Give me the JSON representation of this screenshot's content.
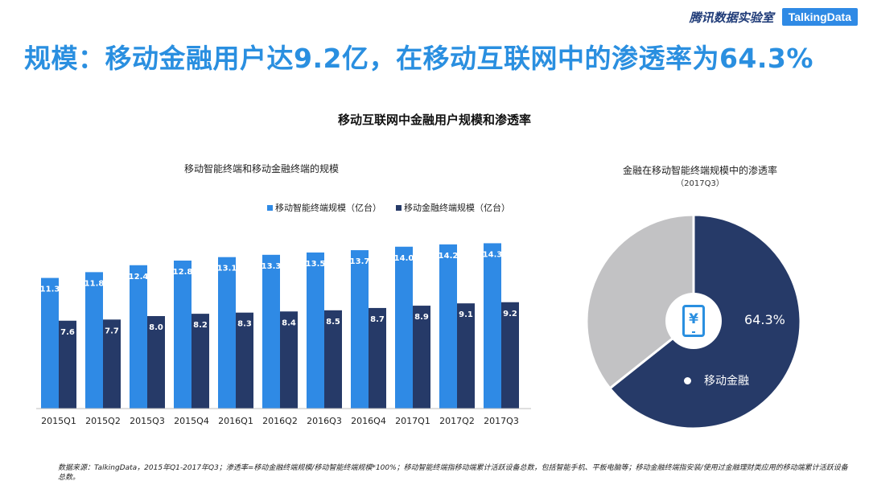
{
  "brand": {
    "lab": "腾讯数据实验室",
    "partner": "TalkingData"
  },
  "headline": "规模：移动金融用户达9.2亿，在移动互联网中的渗透率为64.3%",
  "colors": {
    "smart": "#2f8ae5",
    "finance": "#263a68",
    "pie_other": "#c2c2c4",
    "title_blue": "#2a8fe0"
  },
  "chart_data": [
    {
      "type": "bar",
      "title": "移动互联网中金融用户规模和渗透率",
      "subtitle": "移动智能终端和移动金融终端的规模",
      "categories": [
        "2015Q1",
        "2015Q2",
        "2015Q3",
        "2015Q4",
        "2016Q1",
        "2016Q2",
        "2016Q3",
        "2016Q4",
        "2017Q1",
        "2017Q2",
        "2017Q3"
      ],
      "series": [
        {
          "name": "移动智能终端规模（亿台）",
          "values": [
            11.3,
            11.8,
            12.4,
            12.8,
            13.1,
            13.3,
            13.5,
            13.7,
            14.0,
            14.2,
            14.3
          ]
        },
        {
          "name": "移动金融终端规模（亿台）",
          "values": [
            7.6,
            7.7,
            8.0,
            8.2,
            8.3,
            8.4,
            8.5,
            8.7,
            8.9,
            9.1,
            9.2
          ]
        }
      ],
      "ylim": [
        0,
        16
      ],
      "grid": false,
      "legend": "top"
    },
    {
      "type": "pie",
      "title": "金融在移动智能终端规模中的渗透率",
      "period": "（2017Q3）",
      "slices": [
        {
          "label": "移动金融",
          "value": 64.3,
          "value_label": "64.3%"
        },
        {
          "label": "",
          "value": 35.7
        }
      ]
    }
  ],
  "icon": {
    "center": "mobile-yuan-icon",
    "glyph": "¥"
  },
  "footnote": "数据来源：TalkingData，2015年Q1-2017年Q3；渗透率=移动金融终端规模/移动智能终端规模*100%；移动智能终端指移动端累计活跃设备总数，包括智能手机、平板电脑等；移动金融终端指安装/使用过金融理财类应用的移动端累计活跃设备总数。"
}
